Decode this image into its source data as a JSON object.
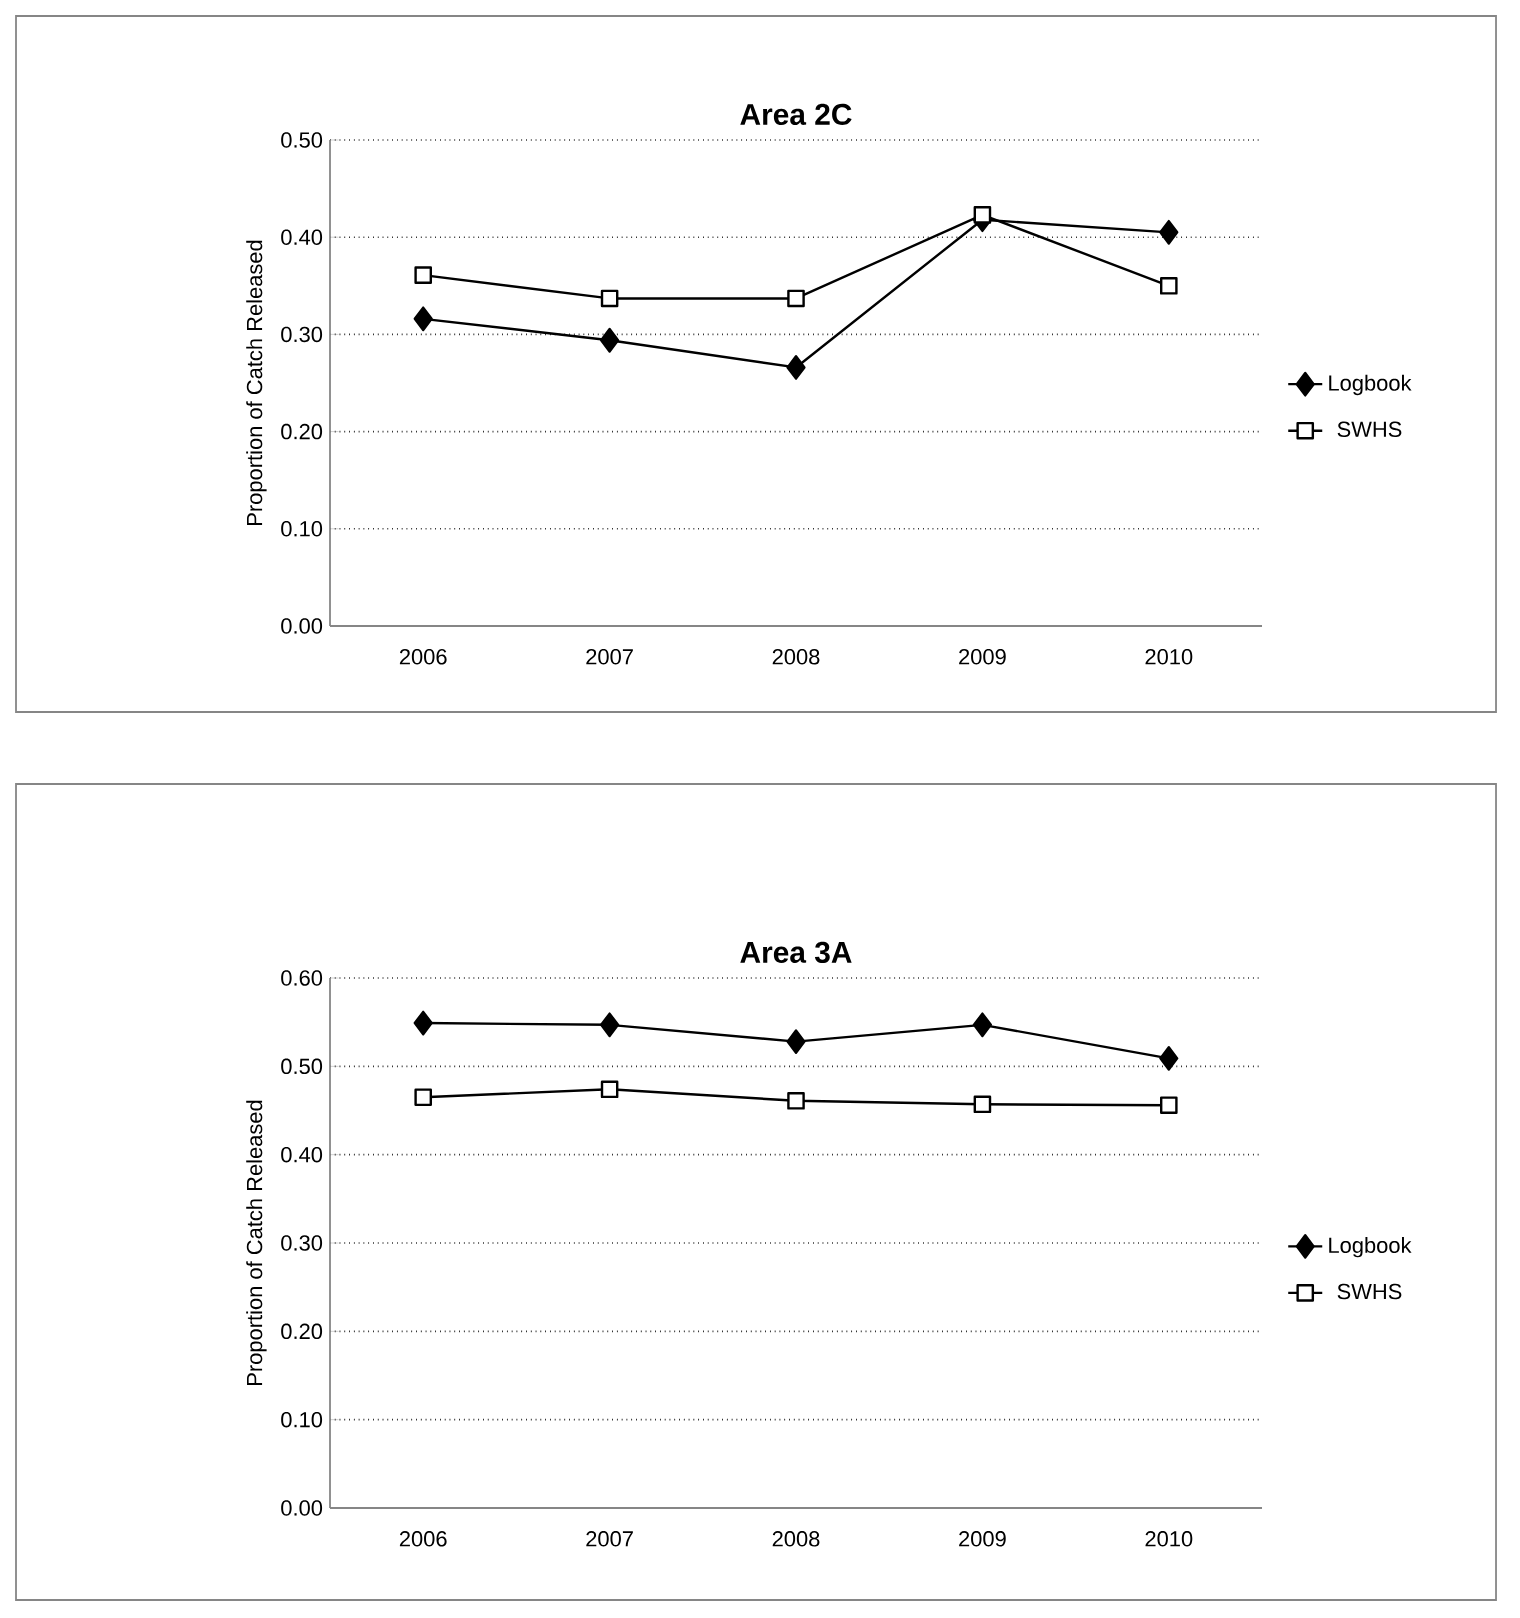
{
  "chart_data": [
    {
      "type": "line",
      "title": "Area 2C",
      "ylabel": "Proportion of Catch Released",
      "categories": [
        "2006",
        "2007",
        "2008",
        "2009",
        "2010"
      ],
      "ylim": [
        0,
        0.5
      ],
      "yticks": [
        {
          "value": 0,
          "label": "0.00"
        },
        {
          "value": 0.1,
          "label": "0.10"
        },
        {
          "value": 0.2,
          "label": "0.20"
        },
        {
          "value": 0.3,
          "label": "0.30"
        },
        {
          "value": 0.4,
          "label": "0.40"
        },
        {
          "value": 0.5,
          "label": "0.50"
        }
      ],
      "grid": "y",
      "legend": "right",
      "line_style": "solid",
      "series": [
        {
          "name": "Logbook",
          "color": "#000000",
          "marker": "diamond",
          "values": [
            0.316,
            0.294,
            0.266,
            0.418,
            0.405
          ]
        },
        {
          "name": "SWHS",
          "color": "#000000",
          "marker": "square",
          "values": [
            0.361,
            0.337,
            0.337,
            0.423,
            0.35
          ]
        }
      ]
    },
    {
      "type": "line",
      "title": "Area 3A",
      "ylabel": "Proportion of Catch Released",
      "categories": [
        "2006",
        "2007",
        "2008",
        "2009",
        "2010"
      ],
      "ylim": [
        0,
        0.6
      ],
      "yticks": [
        {
          "value": 0,
          "label": "0.00"
        },
        {
          "value": 0.1,
          "label": "0.10"
        },
        {
          "value": 0.2,
          "label": "0.20"
        },
        {
          "value": 0.3,
          "label": "0.30"
        },
        {
          "value": 0.4,
          "label": "0.40"
        },
        {
          "value": 0.5,
          "label": "0.50"
        },
        {
          "value": 0.6,
          "label": "0.60"
        }
      ],
      "grid": "y",
      "legend": "right",
      "line_style": "solid",
      "series": [
        {
          "name": "Logbook",
          "color": "#000000",
          "marker": "diamond",
          "values": [
            0.549,
            0.547,
            0.528,
            0.547,
            0.509
          ]
        },
        {
          "name": "SWHS",
          "color": "#000000",
          "marker": "square",
          "values": [
            0.465,
            0.474,
            0.461,
            0.457,
            0.456
          ]
        }
      ]
    }
  ]
}
